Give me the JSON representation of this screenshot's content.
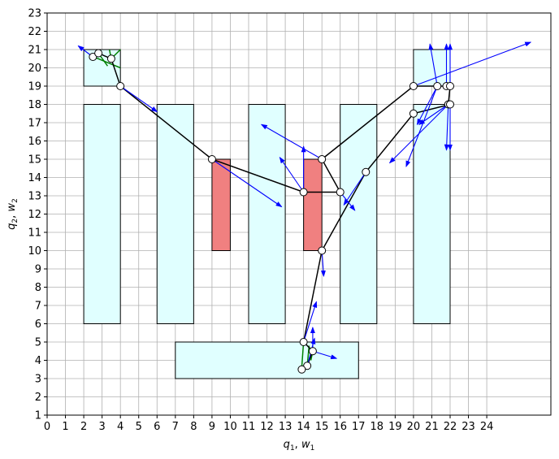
{
  "chart_data": {
    "type": "scatter",
    "title": "",
    "xlabel_parts": {
      "q": "q",
      "q_sub": "1",
      "sep": ", ",
      "w": "w",
      "w_sub": "1"
    },
    "ylabel_parts": {
      "q": "q",
      "q_sub": "2",
      "sep": ", ",
      "w": "w",
      "w_sub": "2"
    },
    "xlim": [
      0,
      27.5
    ],
    "ylim": [
      1,
      23
    ],
    "x_ticks": [
      0,
      1,
      2,
      3,
      4,
      5,
      6,
      7,
      8,
      9,
      10,
      11,
      12,
      13,
      14,
      15,
      16,
      17,
      18,
      19,
      20,
      21,
      22,
      23,
      24
    ],
    "y_ticks": [
      1,
      2,
      3,
      4,
      5,
      6,
      7,
      8,
      9,
      10,
      11,
      12,
      13,
      14,
      15,
      16,
      17,
      18,
      19,
      20,
      21,
      22,
      23
    ],
    "grid": true,
    "colors": {
      "obstacle_cyan": "#e0ffff",
      "obstacle_red": "#f08080",
      "path": "#000000",
      "arrow": "#0000ff",
      "green": "#008000"
    },
    "obstacles_cyan": [
      {
        "x": 2,
        "y": 6,
        "w": 2,
        "h": 12
      },
      {
        "x": 6,
        "y": 6,
        "w": 2,
        "h": 12
      },
      {
        "x": 11,
        "y": 6,
        "w": 2,
        "h": 12
      },
      {
        "x": 16,
        "y": 6,
        "w": 2,
        "h": 12
      },
      {
        "x": 20,
        "y": 6,
        "w": 2,
        "h": 12
      },
      {
        "x": 7,
        "y": 3,
        "w": 10,
        "h": 2
      },
      {
        "x": 2,
        "y": 19,
        "w": 2,
        "h": 2
      },
      {
        "x": 20,
        "y": 19,
        "w": 2,
        "h": 2
      }
    ],
    "obstacles_red": [
      {
        "x": 9,
        "y": 10,
        "w": 1,
        "h": 5
      },
      {
        "x": 14,
        "y": 10,
        "w": 1,
        "h": 5
      }
    ],
    "path_points": [
      [
        2.5,
        20.6
      ],
      [
        2.8,
        20.8
      ],
      [
        3.5,
        20.5
      ],
      [
        4.0,
        19.0
      ],
      [
        9.0,
        15.0
      ],
      [
        14.0,
        13.2
      ],
      [
        16.0,
        13.2
      ],
      [
        15.0,
        15.0
      ],
      [
        20.0,
        19.0
      ],
      [
        21.3,
        19.0
      ],
      [
        21.8,
        19.0
      ],
      [
        22.0,
        19.0
      ],
      [
        21.9,
        18.0
      ],
      [
        22.0,
        18.0
      ],
      [
        20.0,
        17.5
      ],
      [
        17.4,
        14.3
      ],
      [
        15.0,
        10.0
      ],
      [
        14.0,
        5.0
      ],
      [
        14.5,
        4.5
      ],
      [
        14.2,
        3.7
      ],
      [
        13.9,
        3.5
      ]
    ],
    "circle_points": [
      [
        2.5,
        20.6
      ],
      [
        2.8,
        20.8
      ],
      [
        3.5,
        20.5
      ],
      [
        4.0,
        19.0
      ],
      [
        9.0,
        15.0
      ],
      [
        14.0,
        13.2
      ],
      [
        16.0,
        13.2
      ],
      [
        15.0,
        15.0
      ],
      [
        20.0,
        19.0
      ],
      [
        21.3,
        19.0
      ],
      [
        21.8,
        19.0
      ],
      [
        22.0,
        19.0
      ],
      [
        21.9,
        18.0
      ],
      [
        22.0,
        18.0
      ],
      [
        20.0,
        17.5
      ],
      [
        17.4,
        14.3
      ],
      [
        15.0,
        10.0
      ],
      [
        14.0,
        5.0
      ],
      [
        14.5,
        4.5
      ],
      [
        14.2,
        3.7
      ],
      [
        13.9,
        3.5
      ]
    ],
    "arrows": [
      [
        2.5,
        20.6,
        1.7,
        21.2
      ],
      [
        4.0,
        19.0,
        6.0,
        17.6
      ],
      [
        9.0,
        15.0,
        12.8,
        12.4
      ],
      [
        14.0,
        13.2,
        12.7,
        15.1
      ],
      [
        15.0,
        15.0,
        11.7,
        16.9
      ],
      [
        14.0,
        13.2,
        14.0,
        15.7
      ],
      [
        16.0,
        13.2,
        16.8,
        12.2
      ],
      [
        20.0,
        19.0,
        26.4,
        21.4
      ],
      [
        21.3,
        19.0,
        20.9,
        21.3
      ],
      [
        21.8,
        19.0,
        21.8,
        21.3
      ],
      [
        22.0,
        19.0,
        22.0,
        21.3
      ],
      [
        21.3,
        19.0,
        20.2,
        16.9
      ],
      [
        21.3,
        19.0,
        19.6,
        14.6
      ],
      [
        21.9,
        18.0,
        18.7,
        14.8
      ],
      [
        21.9,
        18.0,
        20.3,
        16.9
      ],
      [
        21.9,
        18.0,
        21.8,
        15.5
      ],
      [
        22.0,
        18.0,
        22.0,
        15.5
      ],
      [
        17.4,
        14.3,
        16.2,
        12.5
      ],
      [
        15.0,
        10.0,
        15.1,
        8.6
      ],
      [
        14.0,
        5.0,
        14.7,
        7.2
      ],
      [
        14.5,
        4.5,
        14.5,
        5.8
      ],
      [
        14.5,
        4.5,
        15.8,
        4.1
      ],
      [
        14.2,
        3.7,
        14.6,
        5.2
      ]
    ],
    "green_lines": [
      [
        2.3,
        20.7,
        4.0,
        20.0
      ],
      [
        2.8,
        20.8,
        3.3,
        20.1
      ],
      [
        3.4,
        21.0,
        3.5,
        20.5
      ],
      [
        3.5,
        20.5,
        4.0,
        21.0
      ],
      [
        14.2,
        3.7,
        14.3,
        4.8
      ],
      [
        14.5,
        4.5,
        14.4,
        4.0
      ],
      [
        14.0,
        5.0,
        13.9,
        3.6
      ]
    ]
  }
}
